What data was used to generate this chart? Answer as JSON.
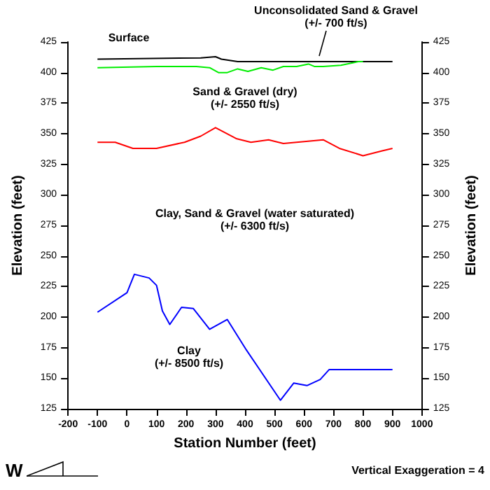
{
  "chart_data": {
    "type": "line",
    "xlabel": "Station Number (feet)",
    "ylabel": "Elevation (feet)",
    "y2label": "Elevation (feet)",
    "xlim": [
      -200,
      1000
    ],
    "xticks": [
      -200,
      -100,
      0,
      100,
      200,
      300,
      400,
      500,
      600,
      700,
      800,
      900,
      1000
    ],
    "ylim": [
      125,
      425
    ],
    "yticks": [
      125,
      150,
      175,
      200,
      225,
      250,
      275,
      300,
      325,
      350,
      375,
      400,
      425
    ],
    "y2lim": [
      125,
      425
    ],
    "y2ticks": [
      125,
      150,
      175,
      200,
      225,
      250,
      275,
      300,
      325,
      350,
      375,
      400,
      425
    ],
    "grid": false,
    "marker": "none",
    "line_style": "solid",
    "series": [
      {
        "color": "#000000",
        "x": [
          -100,
          250,
          300,
          320,
          375,
          900
        ],
        "values": [
          411,
          412,
          413,
          411,
          409,
          409
        ]
      },
      {
        "color": "#00ee00",
        "x": [
          -100,
          100,
          235,
          280,
          310,
          340,
          375,
          410,
          455,
          495,
          530,
          575,
          615,
          635,
          665,
          725,
          785,
          800
        ],
        "values": [
          404,
          405,
          405,
          404,
          400,
          400,
          403,
          401,
          404,
          402,
          405,
          405,
          407,
          405,
          405,
          406,
          409,
          409
        ]
      },
      {
        "color": "#ff0000",
        "x": [
          -100,
          -40,
          20,
          100,
          195,
          250,
          300,
          370,
          420,
          480,
          530,
          665,
          720,
          800,
          865,
          900
        ],
        "values": [
          343,
          343,
          338,
          338,
          343,
          348,
          355,
          346,
          343,
          345,
          342,
          345,
          338,
          332,
          336,
          338
        ]
      },
      {
        "color": "#0000ff",
        "x": [
          -100,
          0,
          25,
          75,
          100,
          120,
          145,
          185,
          225,
          280,
          340,
          405,
          520,
          565,
          610,
          655,
          685,
          900
        ],
        "values": [
          204,
          220,
          235,
          232,
          226,
          205,
          194,
          208,
          207,
          190,
          198,
          173,
          132,
          146,
          144,
          149,
          157,
          157
        ]
      }
    ],
    "annotations": [
      "Surface",
      "Unconsolidated Sand & Gravel\n(+/- 700 ft/s)",
      "Sand & Gravel (dry)\n(+/- 2550 ft/s)",
      "Clay, Sand & Gravel (water saturated)\n(+/- 6300 ft/s)",
      "Clay\n(+/- 8500 ft/s)",
      "W",
      "Vertical Exaggeration = 4"
    ]
  }
}
